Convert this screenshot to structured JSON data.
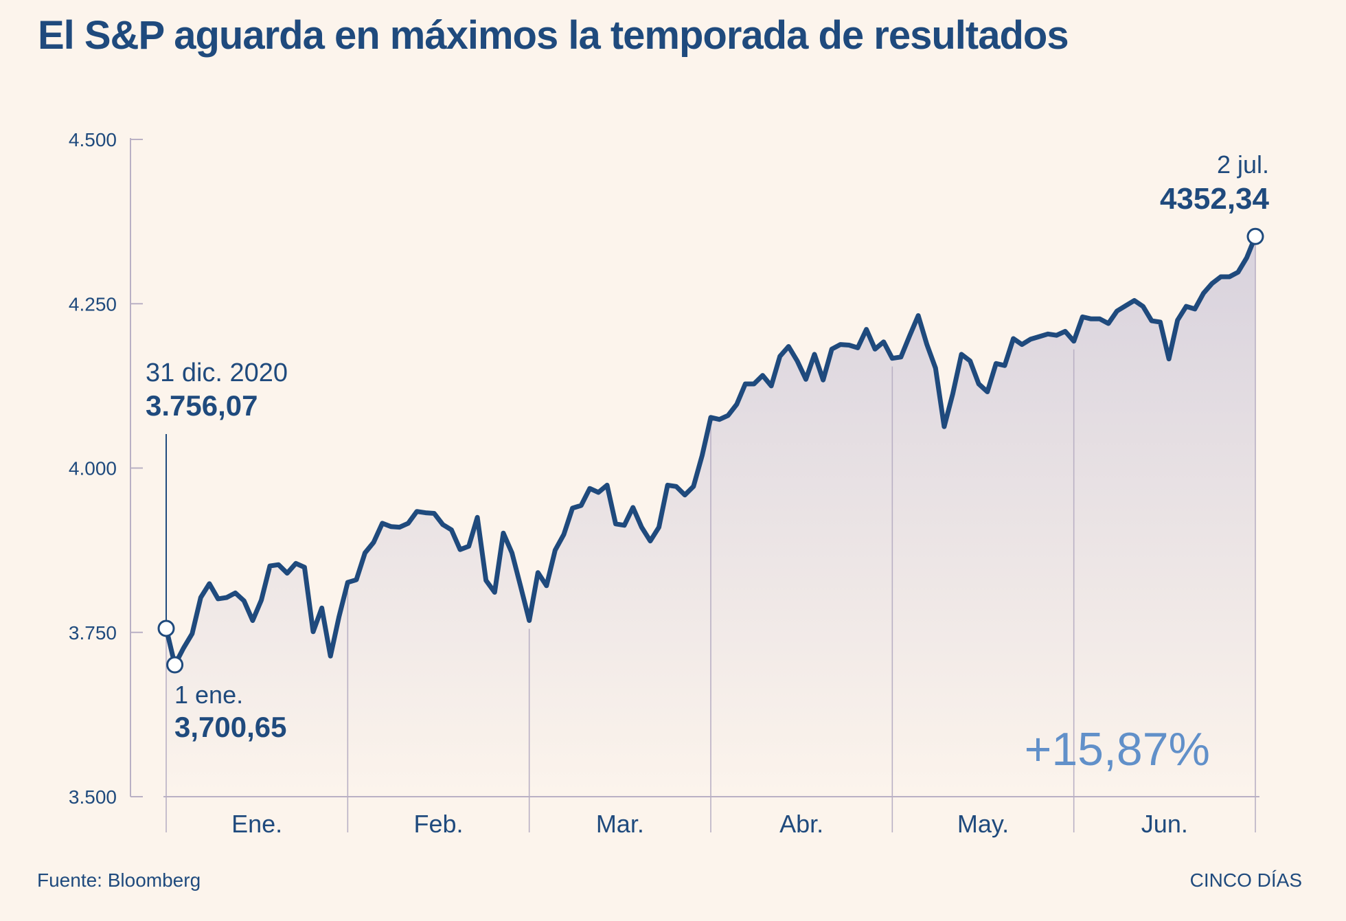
{
  "title": "El S&P aguarda en máximos la temporada de resultados",
  "source": "Fuente: Bloomberg",
  "brand": "CINCO DÍAS",
  "colors": {
    "background": "#fcf4ec",
    "line": "#1f4a7d",
    "accent": "#6190c9",
    "area_top": "#d8d2dd",
    "area_bottom": "#fcf4ec",
    "grid": "#b9b0c4"
  },
  "annotations": {
    "start": {
      "date": "31 dic. 2020",
      "value": "3.756,07"
    },
    "low": {
      "date": "1 ene.",
      "value": "3,700,65"
    },
    "end": {
      "date": "2 jul.",
      "value": "4352,34"
    },
    "change": "+15,87%"
  },
  "chart_data": {
    "type": "area",
    "title": "El S&P aguarda en máximos la temporada de resultados",
    "xlabel": "",
    "ylabel": "",
    "ylim": [
      3500,
      4500
    ],
    "y_ticks": [
      3500,
      3750,
      4000,
      4250,
      4500
    ],
    "y_tick_labels": [
      "3.500",
      "3.750",
      "4.000",
      "4.250",
      "4.500"
    ],
    "months": [
      "Ene.",
      "Feb.",
      "Mar.",
      "Abr.",
      "May.",
      "Jun."
    ],
    "grid": false,
    "series": [
      {
        "values": [
          3756.07,
          3700.65,
          3726,
          3748,
          3803,
          3824,
          3801,
          3803,
          3810,
          3798,
          3768,
          3799,
          3851,
          3853,
          3840,
          3855,
          3849,
          3751,
          3787,
          3714,
          3774,
          3826,
          3830,
          3871,
          3887,
          3916,
          3911,
          3910,
          3916,
          3934,
          3932,
          3931,
          3914,
          3906,
          3876,
          3881,
          3925,
          3829,
          3811,
          3901,
          3871,
          3820,
          3768,
          3841,
          3821,
          3875,
          3899,
          3939,
          3943,
          3969,
          3963,
          3974,
          3915,
          3913,
          3940,
          3910,
          3889,
          3910,
          3974,
          3972,
          3959,
          3972,
          4019,
          4077,
          4074,
          4080,
          4097,
          4128,
          4128,
          4141,
          4125,
          4170,
          4185,
          4163,
          4135,
          4173,
          4134,
          4181,
          4188,
          4187,
          4183,
          4211,
          4181,
          4192,
          4167,
          4169,
          4201,
          4232,
          4188,
          4152,
          4063,
          4113,
          4173,
          4163,
          4128,
          4116,
          4159,
          4156,
          4197,
          4188,
          4196,
          4200,
          4204,
          4202,
          4208,
          4193,
          4230,
          4227,
          4227,
          4220,
          4239,
          4247,
          4255,
          4246,
          4224,
          4222,
          4166,
          4225,
          4246,
          4242,
          4266,
          4281,
          4291,
          4291,
          4298,
          4320,
          4352.34
        ]
      }
    ]
  }
}
